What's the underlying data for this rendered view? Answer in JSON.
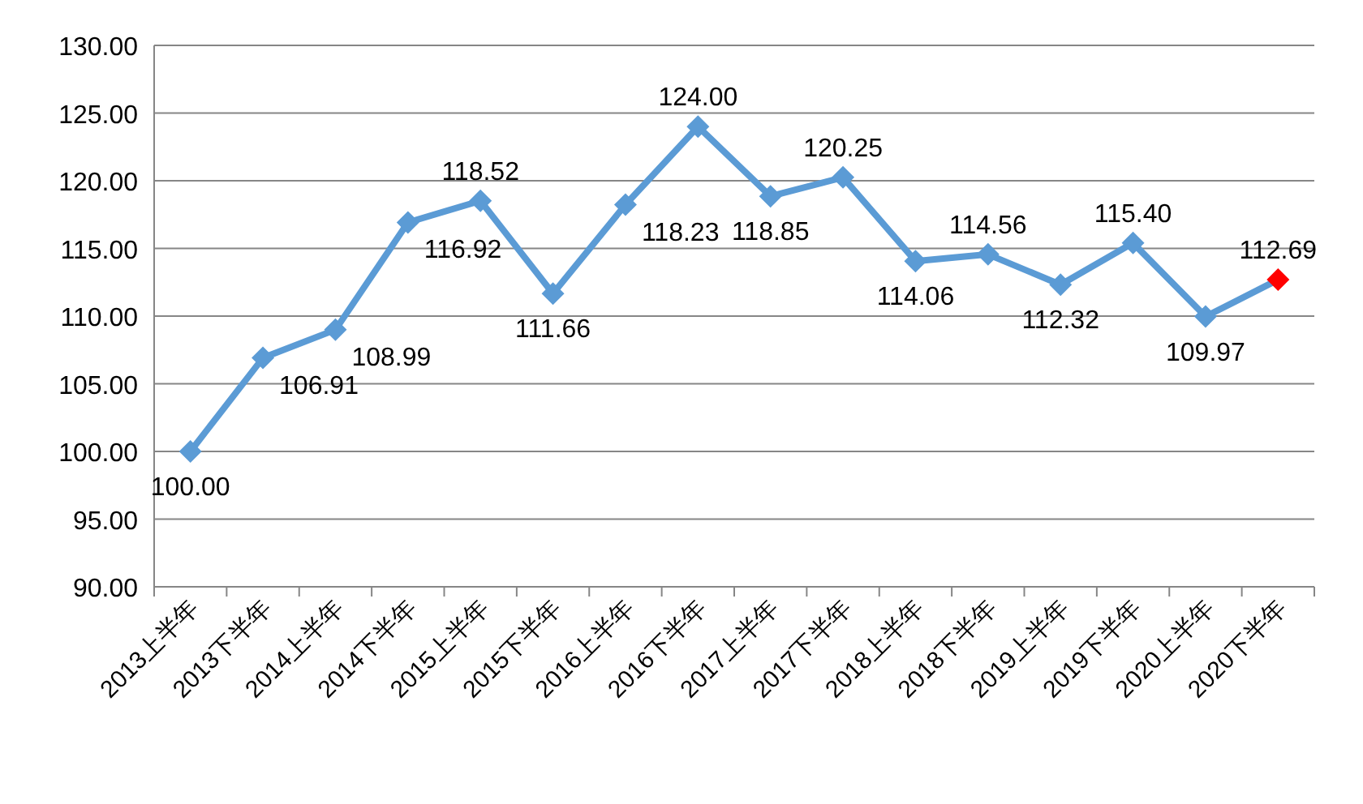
{
  "chart_data": {
    "type": "line",
    "categories": [
      "2013上半年",
      "2013下半年",
      "2014上半年",
      "2014下半年",
      "2015上半年",
      "2015下半年",
      "2016上半年",
      "2016下半年",
      "2017上半年",
      "2017下半年",
      "2018上半年",
      "2018下半年",
      "2019上半年",
      "2019下半年",
      "2020上半年",
      "2020下半年"
    ],
    "series": [
      {
        "color": "#5b9bd5",
        "colors": [
          "#5b9bd5",
          "#5b9bd5",
          "#5b9bd5",
          "#5b9bd5",
          "#5b9bd5",
          "#5b9bd5",
          "#5b9bd5",
          "#5b9bd5",
          "#5b9bd5",
          "#5b9bd5",
          "#5b9bd5",
          "#5b9bd5",
          "#5b9bd5",
          "#5b9bd5",
          "#5b9bd5",
          "#ff0000"
        ],
        "values": [
          100.0,
          106.91,
          108.99,
          116.92,
          118.52,
          111.66,
          118.23,
          124.0,
          118.85,
          120.25,
          114.06,
          114.56,
          112.32,
          115.4,
          109.97,
          112.69
        ],
        "value_labels": [
          "100.00",
          "106.91",
          "108.99",
          "116.92",
          "118.52",
          "111.66",
          "118.23",
          "124.00",
          "118.85",
          "120.25",
          "114.06",
          "114.56",
          "112.32",
          "115.40",
          "109.97",
          "112.69"
        ]
      }
    ],
    "ylim": [
      90,
      130
    ],
    "yticks": [
      {
        "value": 90,
        "label": "90.00"
      },
      {
        "value": 95,
        "label": "95.00"
      },
      {
        "value": 100,
        "label": "100.00"
      },
      {
        "value": 105,
        "label": "105.00"
      },
      {
        "value": 110,
        "label": "110.00"
      },
      {
        "value": 115,
        "label": "115.00"
      },
      {
        "value": 120,
        "label": "120.00"
      },
      {
        "value": 125,
        "label": "125.00"
      },
      {
        "value": 130,
        "label": "130.00"
      }
    ],
    "grid": "y",
    "marker": "diamond",
    "line_style": "solid"
  }
}
